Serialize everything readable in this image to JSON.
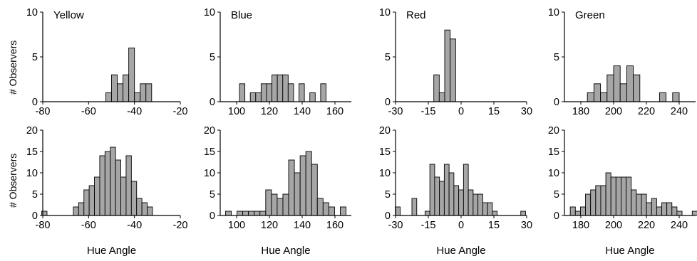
{
  "figure": {
    "y_axis_label": "# Observers",
    "x_axis_label": "Hue Angle"
  },
  "chart_data": [
    {
      "type": "bar",
      "title": "Yellow",
      "ylabel": "# Observers",
      "xlabel": "",
      "xlim": [
        -80,
        -20
      ],
      "xticks": [
        -80,
        -60,
        -40,
        -20
      ],
      "ylim": [
        0,
        10
      ],
      "yticks": [
        0,
        5,
        10
      ],
      "bin_width": 2.5,
      "bars": [
        {
          "x": -51.25,
          "y": 1
        },
        {
          "x": -48.75,
          "y": 3
        },
        {
          "x": -46.25,
          "y": 2
        },
        {
          "x": -43.75,
          "y": 3
        },
        {
          "x": -41.25,
          "y": 6
        },
        {
          "x": -38.75,
          "y": 1
        },
        {
          "x": -36.25,
          "y": 2
        },
        {
          "x": -33.75,
          "y": 2
        }
      ]
    },
    {
      "type": "bar",
      "title": "Blue",
      "ylabel": "# Observers",
      "xlabel": "",
      "xlim": [
        90,
        170
      ],
      "xticks": [
        100,
        120,
        140,
        160
      ],
      "ylim": [
        0,
        10
      ],
      "yticks": [
        0,
        5,
        10
      ],
      "bin_width": 3.3,
      "bars": [
        {
          "x": 103.4,
          "y": 2
        },
        {
          "x": 110,
          "y": 1
        },
        {
          "x": 113.3,
          "y": 1
        },
        {
          "x": 116.6,
          "y": 2
        },
        {
          "x": 119.9,
          "y": 2
        },
        {
          "x": 123.2,
          "y": 3
        },
        {
          "x": 126.5,
          "y": 3
        },
        {
          "x": 129.8,
          "y": 3
        },
        {
          "x": 133.1,
          "y": 2
        },
        {
          "x": 139.7,
          "y": 2
        },
        {
          "x": 146.3,
          "y": 1
        },
        {
          "x": 152.9,
          "y": 2
        }
      ]
    },
    {
      "type": "bar",
      "title": "Red",
      "ylabel": "# Observers",
      "xlabel": "",
      "xlim": [
        -30,
        30
      ],
      "xticks": [
        -30,
        -15,
        0,
        15,
        30
      ],
      "ylim": [
        0,
        10
      ],
      "yticks": [
        0,
        5,
        10
      ],
      "bin_width": 2.5,
      "bars": [
        {
          "x": -11.25,
          "y": 3
        },
        {
          "x": -8.75,
          "y": 1
        },
        {
          "x": -6.25,
          "y": 8
        },
        {
          "x": -3.75,
          "y": 7
        }
      ]
    },
    {
      "type": "bar",
      "title": "Green",
      "ylabel": "# Observers",
      "xlabel": "",
      "xlim": [
        170,
        250
      ],
      "xticks": [
        180,
        200,
        220,
        240
      ],
      "ylim": [
        0,
        10
      ],
      "yticks": [
        0,
        5,
        10
      ],
      "bin_width": 4,
      "bars": [
        {
          "x": 186,
          "y": 1
        },
        {
          "x": 190,
          "y": 2
        },
        {
          "x": 194,
          "y": 1
        },
        {
          "x": 198,
          "y": 3
        },
        {
          "x": 202,
          "y": 4
        },
        {
          "x": 206,
          "y": 2
        },
        {
          "x": 210,
          "y": 4
        },
        {
          "x": 214,
          "y": 3
        },
        {
          "x": 230,
          "y": 1
        },
        {
          "x": 238,
          "y": 1
        }
      ]
    },
    {
      "type": "bar",
      "title": "",
      "ylabel": "# Observers",
      "xlabel": "Hue Angle",
      "xlim": [
        -80,
        -20
      ],
      "xticks": [
        -80,
        -60,
        -40,
        -20
      ],
      "ylim": [
        0,
        20
      ],
      "yticks": [
        0,
        5,
        10,
        15,
        20
      ],
      "bin_width": 2.3,
      "bars": [
        {
          "x": -79.3,
          "y": 1
        },
        {
          "x": -65.5,
          "y": 2
        },
        {
          "x": -63.2,
          "y": 3
        },
        {
          "x": -60.9,
          "y": 6
        },
        {
          "x": -58.6,
          "y": 7
        },
        {
          "x": -56.3,
          "y": 9
        },
        {
          "x": -54,
          "y": 14
        },
        {
          "x": -51.7,
          "y": 15
        },
        {
          "x": -49.4,
          "y": 16
        },
        {
          "x": -47.1,
          "y": 13
        },
        {
          "x": -44.8,
          "y": 9
        },
        {
          "x": -42.5,
          "y": 14
        },
        {
          "x": -40.2,
          "y": 8
        },
        {
          "x": -37.9,
          "y": 4
        },
        {
          "x": -35.6,
          "y": 3
        },
        {
          "x": -33.3,
          "y": 2
        }
      ]
    },
    {
      "type": "bar",
      "title": "",
      "ylabel": "# Observers",
      "xlabel": "Hue Angle",
      "xlim": [
        90,
        170
      ],
      "xticks": [
        100,
        120,
        140,
        160
      ],
      "ylim": [
        0,
        20
      ],
      "yticks": [
        0,
        5,
        10,
        15,
        20
      ],
      "bin_width": 3.5,
      "bars": [
        {
          "x": 95,
          "y": 1
        },
        {
          "x": 102,
          "y": 1
        },
        {
          "x": 105.5,
          "y": 1
        },
        {
          "x": 109,
          "y": 1
        },
        {
          "x": 112.5,
          "y": 1
        },
        {
          "x": 116,
          "y": 1
        },
        {
          "x": 119.5,
          "y": 6
        },
        {
          "x": 123,
          "y": 5
        },
        {
          "x": 126.5,
          "y": 4
        },
        {
          "x": 130,
          "y": 5
        },
        {
          "x": 133.5,
          "y": 13
        },
        {
          "x": 137,
          "y": 10
        },
        {
          "x": 140.5,
          "y": 14
        },
        {
          "x": 144,
          "y": 15
        },
        {
          "x": 147.5,
          "y": 12
        },
        {
          "x": 151,
          "y": 4
        },
        {
          "x": 154.5,
          "y": 3
        },
        {
          "x": 158,
          "y": 2
        },
        {
          "x": 165,
          "y": 2
        }
      ]
    },
    {
      "type": "bar",
      "title": "",
      "ylabel": "# Observers",
      "xlabel": "Hue Angle",
      "xlim": [
        -30,
        30
      ],
      "xticks": [
        -30,
        -15,
        0,
        15,
        30
      ],
      "ylim": [
        0,
        20
      ],
      "yticks": [
        0,
        5,
        10,
        15,
        20
      ],
      "bin_width": 2.2,
      "bars": [
        {
          "x": -29,
          "y": 2
        },
        {
          "x": -21.4,
          "y": 4
        },
        {
          "x": -15.4,
          "y": 1
        },
        {
          "x": -13.2,
          "y": 12
        },
        {
          "x": -11,
          "y": 9
        },
        {
          "x": -8.8,
          "y": 8
        },
        {
          "x": -6.6,
          "y": 12
        },
        {
          "x": -4.4,
          "y": 10
        },
        {
          "x": -2.2,
          "y": 7
        },
        {
          "x": 0,
          "y": 6
        },
        {
          "x": 2.2,
          "y": 12
        },
        {
          "x": 4.4,
          "y": 6
        },
        {
          "x": 6.6,
          "y": 5
        },
        {
          "x": 8.8,
          "y": 5
        },
        {
          "x": 11,
          "y": 3
        },
        {
          "x": 13.2,
          "y": 3
        },
        {
          "x": 15.4,
          "y": 1
        },
        {
          "x": 28.4,
          "y": 1
        }
      ]
    },
    {
      "type": "bar",
      "title": "",
      "ylabel": "# Observers",
      "xlabel": "Hue Angle",
      "xlim": [
        170,
        250
      ],
      "xticks": [
        180,
        200,
        220,
        240
      ],
      "ylim": [
        0,
        20
      ],
      "yticks": [
        0,
        5,
        10,
        15,
        20
      ],
      "bin_width": 3.1,
      "bars": [
        {
          "x": 175.1,
          "y": 2
        },
        {
          "x": 178.2,
          "y": 1
        },
        {
          "x": 181.3,
          "y": 2
        },
        {
          "x": 184.4,
          "y": 5
        },
        {
          "x": 187.5,
          "y": 6
        },
        {
          "x": 190.6,
          "y": 7
        },
        {
          "x": 193.7,
          "y": 7
        },
        {
          "x": 196.8,
          "y": 10
        },
        {
          "x": 199.9,
          "y": 9
        },
        {
          "x": 203,
          "y": 9
        },
        {
          "x": 206.1,
          "y": 9
        },
        {
          "x": 209.2,
          "y": 9
        },
        {
          "x": 212.3,
          "y": 6
        },
        {
          "x": 215.4,
          "y": 5
        },
        {
          "x": 218.5,
          "y": 5
        },
        {
          "x": 221.6,
          "y": 3
        },
        {
          "x": 224.7,
          "y": 4
        },
        {
          "x": 227.8,
          "y": 2
        },
        {
          "x": 230.9,
          "y": 3
        },
        {
          "x": 234,
          "y": 3
        },
        {
          "x": 237.1,
          "y": 2
        },
        {
          "x": 240.2,
          "y": 1
        },
        {
          "x": 249.5,
          "y": 1
        }
      ]
    }
  ]
}
